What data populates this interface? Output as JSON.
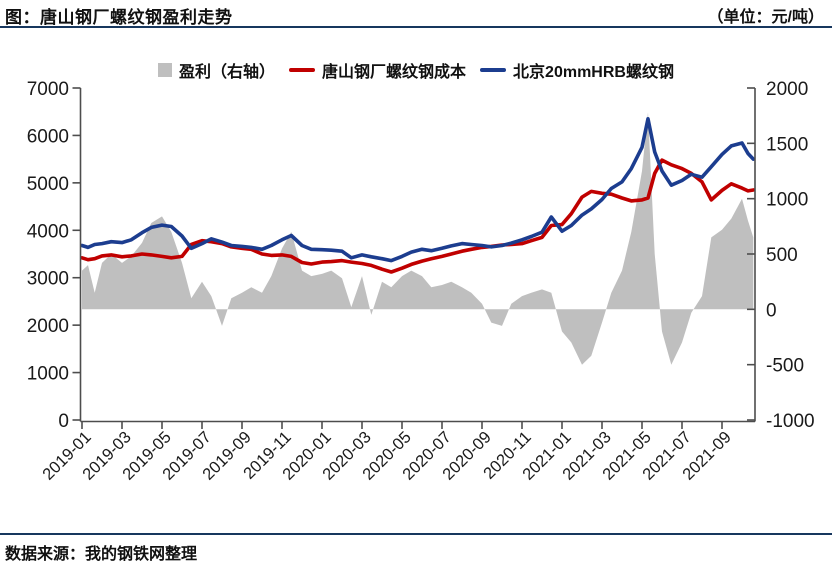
{
  "header": {
    "title": "图：唐山钢厂螺纹钢盈利走势",
    "unit": "（单位：元/吨）"
  },
  "footer": {
    "source": "数据来源：我的钢铁网整理"
  },
  "colors": {
    "profit_area": "#bfbfbf",
    "cost_line": "#c00000",
    "price_line": "#1c3d8f",
    "separator": "#17375e",
    "axis_line": "#4d4d4d",
    "tick_text": "#1a1a1a"
  },
  "legend": [
    {
      "label": "盈利（右轴）",
      "style": "area",
      "color": "#bfbfbf"
    },
    {
      "label": "唐山钢厂螺纹钢成本",
      "style": "line",
      "color": "#c00000"
    },
    {
      "label": "北京20mmHRB螺纹钢",
      "style": "line",
      "color": "#1c3d8f"
    }
  ],
  "chart_data": {
    "type": "line",
    "title": "图：唐山钢厂螺纹钢盈利走势",
    "unit": "元/吨",
    "grid": false,
    "legend_position": "top",
    "left_axis": {
      "min": 0,
      "max": 7000,
      "ticks": [
        7000,
        6000,
        5000,
        4000,
        3000,
        2000,
        1000,
        0
      ]
    },
    "right_axis": {
      "min": -1000,
      "max": 2000,
      "ticks": [
        2000,
        1500,
        1000,
        500,
        0,
        -500,
        -1000
      ]
    },
    "x_tick_labels": [
      "2019-01",
      "2019-03",
      "2019-05",
      "2019-07",
      "2019-09",
      "2019-11",
      "2020-01",
      "2020-03",
      "2020-05",
      "2020-07",
      "2020-09",
      "2020-11",
      "2021-01",
      "2021-03",
      "2021-05",
      "2021-07",
      "2021-09"
    ],
    "x": [
      "2019-01-01",
      "2019-01-10",
      "2019-01-20",
      "2019-02-01",
      "2019-02-15",
      "2019-03-01",
      "2019-03-15",
      "2019-04-01",
      "2019-04-15",
      "2019-05-01",
      "2019-05-15",
      "2019-06-01",
      "2019-06-15",
      "2019-07-01",
      "2019-07-15",
      "2019-08-01",
      "2019-08-15",
      "2019-09-01",
      "2019-09-15",
      "2019-10-01",
      "2019-10-15",
      "2019-11-01",
      "2019-11-15",
      "2019-12-01",
      "2019-12-15",
      "2020-01-01",
      "2020-01-15",
      "2020-02-01",
      "2020-02-15",
      "2020-03-01",
      "2020-03-15",
      "2020-04-01",
      "2020-04-15",
      "2020-05-01",
      "2020-05-15",
      "2020-06-01",
      "2020-06-15",
      "2020-07-01",
      "2020-07-15",
      "2020-08-01",
      "2020-08-15",
      "2020-09-01",
      "2020-09-15",
      "2020-10-01",
      "2020-10-15",
      "2020-11-01",
      "2020-11-15",
      "2020-12-01",
      "2020-12-15",
      "2021-01-01",
      "2021-01-15",
      "2021-02-01",
      "2021-02-15",
      "2021-03-01",
      "2021-03-15",
      "2021-04-01",
      "2021-04-15",
      "2021-05-01",
      "2021-05-10",
      "2021-05-20",
      "2021-06-01",
      "2021-06-15",
      "2021-07-01",
      "2021-07-15",
      "2021-08-01",
      "2021-08-15",
      "2021-09-01",
      "2021-09-15",
      "2021-10-01",
      "2021-10-10",
      "2021-10-18"
    ],
    "series": [
      {
        "name": "盈利（右轴）",
        "axis": "right",
        "style": "area",
        "color": "#bfbfbf",
        "values": [
          350,
          400,
          150,
          420,
          500,
          420,
          480,
          600,
          780,
          840,
          700,
          420,
          100,
          250,
          120,
          -150,
          100,
          150,
          200,
          150,
          300,
          550,
          700,
          350,
          300,
          320,
          350,
          280,
          20,
          300,
          -50,
          250,
          200,
          300,
          350,
          300,
          200,
          220,
          250,
          200,
          150,
          50,
          -120,
          -150,
          50,
          120,
          150,
          180,
          150,
          -200,
          -300,
          -500,
          -420,
          -120,
          150,
          350,
          700,
          1250,
          1780,
          500,
          -200,
          -500,
          -300,
          -30,
          120,
          650,
          720,
          820,
          1000,
          800,
          650
        ]
      },
      {
        "name": "唐山钢厂螺纹钢成本",
        "axis": "left",
        "style": "line",
        "color": "#c00000",
        "values": [
          3420,
          3380,
          3400,
          3460,
          3480,
          3440,
          3460,
          3500,
          3480,
          3450,
          3420,
          3450,
          3700,
          3780,
          3760,
          3720,
          3650,
          3620,
          3600,
          3500,
          3470,
          3480,
          3450,
          3320,
          3290,
          3330,
          3340,
          3360,
          3330,
          3300,
          3260,
          3180,
          3120,
          3200,
          3280,
          3350,
          3400,
          3450,
          3500,
          3560,
          3600,
          3640,
          3660,
          3690,
          3700,
          3720,
          3780,
          3850,
          4100,
          4120,
          4350,
          4700,
          4820,
          4780,
          4760,
          4680,
          4620,
          4640,
          4680,
          5200,
          5480,
          5380,
          5300,
          5200,
          5020,
          4640,
          4840,
          4980,
          4890,
          4830,
          4850
        ]
      },
      {
        "name": "北京20mmHRB螺纹钢",
        "axis": "left",
        "style": "line",
        "color": "#1c3d8f",
        "values": [
          3680,
          3640,
          3700,
          3720,
          3760,
          3740,
          3800,
          3950,
          4060,
          4110,
          4080,
          3880,
          3620,
          3720,
          3820,
          3750,
          3680,
          3660,
          3640,
          3600,
          3680,
          3800,
          3890,
          3680,
          3600,
          3590,
          3580,
          3560,
          3420,
          3480,
          3440,
          3400,
          3360,
          3450,
          3540,
          3600,
          3570,
          3620,
          3670,
          3720,
          3700,
          3680,
          3650,
          3680,
          3730,
          3800,
          3870,
          3960,
          4280,
          3980,
          4100,
          4320,
          4450,
          4650,
          4880,
          5020,
          5300,
          5750,
          6350,
          5650,
          5250,
          4950,
          5050,
          5180,
          5120,
          5340,
          5600,
          5780,
          5840,
          5620,
          5500
        ]
      }
    ]
  }
}
